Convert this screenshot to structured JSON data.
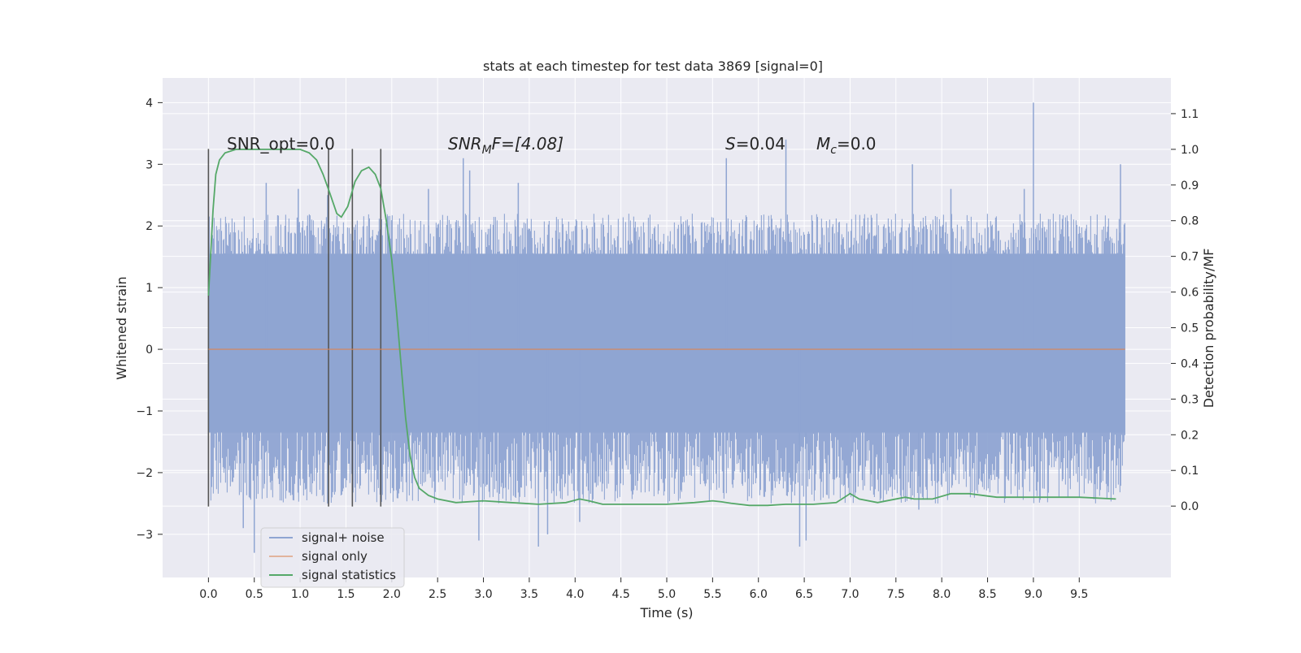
{
  "chart_data": {
    "type": "line",
    "title": "stats at each timestep for test data 3869 [signal=0]",
    "xlabel": "Time (s)",
    "ylabel": "Whitened strain",
    "ylabel_right": "Detection probability/MF",
    "xlim": [
      -0.5,
      10.5
    ],
    "ylim": [
      -3.7,
      4.4
    ],
    "ylim_right": [
      -0.2,
      1.2
    ],
    "xticks": [
      "0.0",
      "0.5",
      "1.0",
      "1.5",
      "2.0",
      "2.5",
      "3.0",
      "3.5",
      "4.0",
      "4.5",
      "5.0",
      "5.5",
      "6.0",
      "6.5",
      "7.0",
      "7.5",
      "8.0",
      "8.5",
      "9.0",
      "9.5"
    ],
    "yticks": [
      "4",
      "3",
      "2",
      "1",
      "0",
      "−1",
      "−2",
      "−3"
    ],
    "yticks_right": [
      "1.1",
      "1.0",
      "0.9",
      "0.8",
      "0.7",
      "0.6",
      "0.5",
      "0.4",
      "0.3",
      "0.2",
      "0.1",
      "0.0"
    ],
    "grid": true,
    "legend_placement": "lower-left",
    "legend": [
      {
        "label": "signal+ noise",
        "color": "#8fa5d2"
      },
      {
        "label": "signal only",
        "color": "#dd8452"
      },
      {
        "label": "signal statistics",
        "color": "#55a868"
      }
    ],
    "annotations": {
      "snr_opt": "SNR_opt=0.0",
      "snr_mf_base": "SNR",
      "snr_mf_sub": "M",
      "snr_mf_tail": "F=[4.08]",
      "s_sym": "S",
      "s_val": "=0.04",
      "mc_sym": "M",
      "mc_sub": "c",
      "mc_val": "=0.0"
    },
    "noise_series": {
      "name": "signal+ noise",
      "t_range": [
        0.0,
        10.0
      ],
      "envelope": [
        -2.5,
        2.2
      ],
      "peaks": [
        [
          0.63,
          2.7
        ],
        [
          0.98,
          2.6
        ],
        [
          1.3,
          2.5
        ],
        [
          2.4,
          2.6
        ],
        [
          2.78,
          3.1
        ],
        [
          2.85,
          2.9
        ],
        [
          3.38,
          2.7
        ],
        [
          5.65,
          3.1
        ],
        [
          6.3,
          3.4
        ],
        [
          7.68,
          3.0
        ],
        [
          8.1,
          2.6
        ],
        [
          8.9,
          2.6
        ],
        [
          9.0,
          4.0
        ],
        [
          9.95,
          3.0
        ],
        [
          0.5,
          -3.3
        ],
        [
          0.38,
          -2.9
        ],
        [
          2.95,
          -3.1
        ],
        [
          3.6,
          -3.2
        ],
        [
          3.7,
          -3.0
        ],
        [
          6.45,
          -3.2
        ],
        [
          6.52,
          -3.1
        ],
        [
          1.3,
          -2.5
        ],
        [
          4.05,
          -2.8
        ],
        [
          7.75,
          -2.6
        ]
      ]
    },
    "signal_only": {
      "name": "signal only",
      "t": [
        0.0,
        10.0
      ],
      "values": [
        0.0,
        0.0
      ]
    },
    "stat_series": {
      "name": "signal statistics",
      "t": [
        0.0,
        0.05,
        0.08,
        0.12,
        0.18,
        0.3,
        0.5,
        0.7,
        0.9,
        1.0,
        1.1,
        1.18,
        1.25,
        1.32,
        1.4,
        1.45,
        1.52,
        1.6,
        1.67,
        1.75,
        1.82,
        1.88,
        1.94,
        2.0,
        2.05,
        2.1,
        2.15,
        2.2,
        2.25,
        2.3,
        2.4,
        2.5,
        2.7,
        3.0,
        3.3,
        3.6,
        3.9,
        4.05,
        4.15,
        4.3,
        4.6,
        5.0,
        5.3,
        5.5,
        5.6,
        5.7,
        5.9,
        6.1,
        6.3,
        6.6,
        6.85,
        7.0,
        7.1,
        7.3,
        7.6,
        7.7,
        7.9,
        8.1,
        8.3,
        8.6,
        8.9,
        9.2,
        9.5,
        9.9
      ],
      "values": [
        0.59,
        0.83,
        0.93,
        0.97,
        0.99,
        1.0,
        1.0,
        1.0,
        1.0,
        1.0,
        0.99,
        0.97,
        0.93,
        0.88,
        0.82,
        0.81,
        0.84,
        0.91,
        0.94,
        0.95,
        0.93,
        0.89,
        0.8,
        0.69,
        0.55,
        0.4,
        0.25,
        0.14,
        0.08,
        0.05,
        0.03,
        0.02,
        0.01,
        0.015,
        0.01,
        0.005,
        0.01,
        0.02,
        0.015,
        0.005,
        0.005,
        0.005,
        0.01,
        0.015,
        0.012,
        0.008,
        0.002,
        0.002,
        0.005,
        0.005,
        0.01,
        0.035,
        0.02,
        0.01,
        0.025,
        0.02,
        0.02,
        0.035,
        0.035,
        0.025,
        0.025,
        0.025,
        0.025,
        0.02
      ]
    },
    "vlines": [
      {
        "t": 0.0,
        "ylim": [
          -2.55,
          3.25
        ]
      },
      {
        "t": 1.31,
        "ylim": [
          -2.55,
          3.25
        ]
      },
      {
        "t": 1.57,
        "ylim": [
          -2.55,
          3.25
        ]
      },
      {
        "t": 1.88,
        "ylim": [
          -2.55,
          3.25
        ]
      }
    ]
  }
}
